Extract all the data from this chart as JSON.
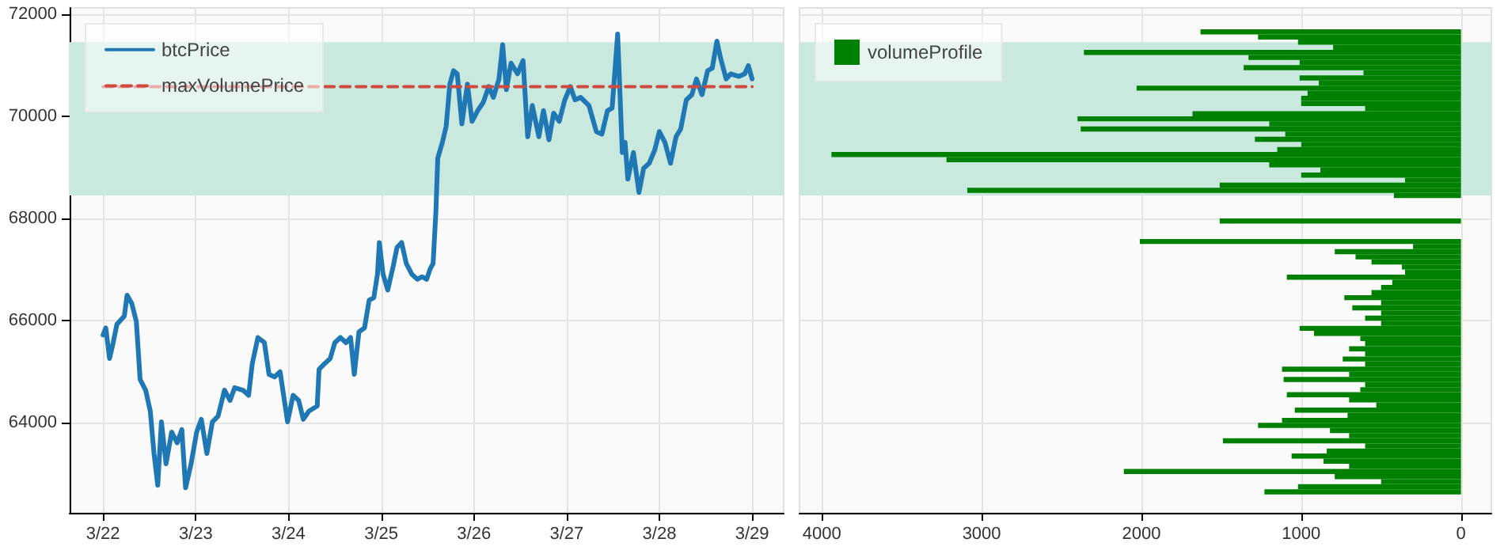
{
  "chart_data": [
    {
      "type": "line",
      "xlim": [
        "--03-21T15:22",
        "--03-29T08:10"
      ],
      "ylim": [
        62240,
        72120
      ],
      "xticks": [
        {
          "value": "--03-22",
          "label": "3/22"
        },
        {
          "value": "--03-23",
          "label": "3/23"
        },
        {
          "value": "--03-24",
          "label": "3/24"
        },
        {
          "value": "--03-25",
          "label": "3/25"
        },
        {
          "value": "--03-26",
          "label": "3/26"
        },
        {
          "value": "--03-27",
          "label": "3/27"
        },
        {
          "value": "--03-28",
          "label": "3/28"
        },
        {
          "value": "--03-29",
          "label": "3/29"
        }
      ],
      "yticks": [
        64000,
        66000,
        68000,
        70000,
        72000
      ],
      "grid": true,
      "legend": "top left",
      "bands": [
        {
          "axis": "y",
          "from": 68450,
          "to": 71450,
          "color": "#c9e8de"
        }
      ],
      "series": [
        {
          "name": "btcPrice",
          "color": "#1f77b4",
          "line_style": "solid",
          "x": [
            "--03-22T00:00",
            "--03-22T00:43",
            "--03-22T01:41",
            "--03-22T02:38",
            "--03-22T03:36",
            "--03-22T05:31",
            "--03-22T06:14",
            "--03-22T07:26",
            "--03-22T08:38",
            "--03-22T09:36",
            "--03-22T11:02",
            "--03-22T12:14",
            "--03-22T13:12",
            "--03-22T14:10",
            "--03-22T15:07",
            "--03-22T16:19",
            "--03-22T17:46",
            "--03-22T19:12",
            "--03-22T20:24",
            "--03-22T21:22",
            "--03-22T22:48",
            "--03-23T00:14",
            "--03-23T01:26",
            "--03-23T02:53",
            "--03-23T04:19",
            "--03-23T05:46",
            "--03-23T07:26",
            "--03-23T08:53",
            "--03-23T10:05",
            "--03-23T12:14",
            "--03-23T13:41",
            "--03-23T14:38",
            "--03-23T16:05",
            "--03-23T17:46",
            "--03-23T18:58",
            "--03-23T20:24",
            "--03-23T21:50",
            "--03-23T23:46",
            "--03-24T01:12",
            "--03-24T02:38",
            "--03-24T03:50",
            "--03-24T05:17",
            "--03-24T07:26",
            "--03-24T07:55",
            "--03-24T09:22",
            "--03-24T10:48",
            "--03-24T12:00",
            "--03-24T13:26",
            "--03-24T14:53",
            "--03-24T16:05",
            "--03-24T17:02",
            "--03-24T18:14",
            "--03-24T19:41",
            "--03-24T20:53",
            "--03-24T22:05",
            "--03-24T23:02",
            "--03-24T23:31",
            "--03-25T00:29",
            "--03-25T01:41",
            "--03-25T03:07",
            "--03-25T04:05",
            "--03-25T05:17",
            "--03-25T06:29",
            "--03-25T07:55",
            "--03-25T09:22",
            "--03-25T10:34",
            "--03-25T11:46",
            "--03-25T12:43",
            "--03-25T13:26",
            "--03-25T14:10",
            "--03-25T14:38",
            "--03-25T15:50",
            "--03-25T16:48",
            "--03-25T17:46",
            "--03-25T18:43",
            "--03-25T19:41",
            "--03-25T20:53",
            "--03-25T22:19",
            "--03-25T23:31",
            "--03-26T00:58",
            "--03-26T02:24",
            "--03-26T03:50",
            "--03-26T05:02",
            "--03-26T06:29",
            "--03-26T07:26",
            "--03-26T08:24",
            "--03-26T09:36",
            "--03-26T11:17",
            "--03-26T12:43",
            "--03-26T13:55",
            "--03-26T15:07",
            "--03-26T16:48",
            "--03-26T18:00",
            "--03-26T19:26",
            "--03-26T20:38",
            "--03-26T22:05",
            "--03-26T23:31",
            "--03-27T00:58",
            "--03-27T02:10",
            "--03-27T03:36",
            "--03-27T05:46",
            "--03-27T07:41",
            "--03-27T09:07",
            "--03-27T10:34",
            "--03-27T11:46",
            "--03-27T13:12",
            "--03-27T14:24",
            "--03-27T15:07",
            "--03-27T15:50",
            "--03-27T17:17",
            "--03-27T18:43",
            "--03-27T19:55",
            "--03-27T21:22",
            "--03-27T22:48",
            "--03-28T00:00",
            "--03-28T01:26",
            "--03-28T02:53",
            "--03-28T04:19",
            "--03-28T05:31",
            "--03-28T06:58",
            "--03-28T08:24",
            "--03-28T09:36",
            "--03-28T11:02",
            "--03-28T12:29",
            "--03-28T13:41",
            "--03-28T14:53",
            "--03-28T15:50",
            "--03-28T17:17",
            "--03-28T18:29",
            "--03-28T20:38",
            "--03-28T22:05",
            "--03-28T23:02",
            "--03-29T00:00"
          ],
          "values": [
            65720,
            65860,
            65260,
            65570,
            65930,
            66090,
            66500,
            66340,
            65980,
            64850,
            64640,
            64230,
            63400,
            62780,
            64020,
            63200,
            63820,
            63610,
            63870,
            62730,
            63200,
            63820,
            64070,
            63400,
            64020,
            64130,
            64640,
            64440,
            64690,
            64640,
            64540,
            65160,
            65670,
            65570,
            64950,
            64900,
            65000,
            64020,
            64540,
            64440,
            64070,
            64230,
            64330,
            65050,
            65160,
            65260,
            65570,
            65670,
            65570,
            65670,
            64950,
            65780,
            65860,
            66400,
            66450,
            66910,
            67530,
            66910,
            66600,
            67070,
            67430,
            67530,
            67120,
            66910,
            66810,
            66860,
            66810,
            67020,
            67120,
            68150,
            69180,
            69490,
            69800,
            70630,
            70890,
            70830,
            69850,
            70630,
            69900,
            70110,
            70270,
            70580,
            70370,
            70730,
            71400,
            70520,
            71040,
            70830,
            71090,
            69600,
            70210,
            69600,
            70110,
            69540,
            70060,
            69900,
            70320,
            70580,
            70320,
            70370,
            70210,
            69700,
            69650,
            70110,
            70160,
            71610,
            69290,
            69490,
            68770,
            69290,
            68510,
            68980,
            69080,
            69340,
            69700,
            69490,
            69080,
            69600,
            69750,
            70320,
            70420,
            70730,
            70420,
            70890,
            70940,
            71470,
            71140,
            70730,
            70830,
            70780,
            70830,
            70990,
            70730
          ]
        },
        {
          "name": "maxVolumePrice",
          "color": "#d0493f",
          "line_style": "dashed",
          "x": [
            "--03-22",
            "--03-29"
          ],
          "values": [
            70580,
            70580
          ]
        }
      ]
    },
    {
      "type": "histogram",
      "orientation": "horizontal",
      "xlim": [
        4140,
        -190
      ],
      "ylim": [
        62240,
        72120
      ],
      "xticks": [
        4000,
        3000,
        2000,
        1000,
        0
      ],
      "yticks": [
        64000,
        66000,
        68000,
        70000,
        72000
      ],
      "tick_labels": "x",
      "grid": true,
      "legend": "top left",
      "bands": [
        {
          "axis": "y",
          "from": 68450,
          "to": 71450,
          "color": "#c9e8de"
        }
      ],
      "bins": [
        62600,
        62700,
        62800,
        62900,
        63000,
        63100,
        63200,
        63300,
        63400,
        63500,
        63600,
        63700,
        63800,
        63900,
        64000,
        64100,
        64200,
        64300,
        64400,
        64500,
        64600,
        64700,
        64800,
        64900,
        65000,
        65100,
        65200,
        65300,
        65400,
        65500,
        65600,
        65700,
        65800,
        65900,
        66000,
        66100,
        66200,
        66300,
        66400,
        66500,
        66600,
        66700,
        66800,
        66900,
        67000,
        67100,
        67200,
        67300,
        67400,
        67500,
        67600,
        67700,
        67800,
        67900,
        68000,
        68100,
        68200,
        68300,
        68400,
        68500,
        68600,
        68700,
        68800,
        68900,
        69000,
        69100,
        69200,
        69300,
        69400,
        69500,
        69600,
        69700,
        69800,
        69900,
        70000,
        70100,
        70200,
        70300,
        70400,
        70500,
        70600,
        70700,
        70800,
        70900,
        71000,
        71100,
        71200,
        71300,
        71400,
        71500,
        71600,
        71700
      ],
      "series": [
        {
          "name": "volumeProfile",
          "color": "#008000",
          "values": [
            1230,
            1020,
            500,
            790,
            2110,
            700,
            860,
            1060,
            840,
            600,
            1490,
            700,
            820,
            1270,
            1120,
            710,
            1040,
            530,
            700,
            1090,
            630,
            600,
            1110,
            700,
            1120,
            600,
            740,
            600,
            700,
            600,
            630,
            920,
            1010,
            500,
            600,
            500,
            680,
            500,
            730,
            560,
            500,
            430,
            1090,
            350,
            370,
            560,
            660,
            790,
            300,
            2010,
            0,
            0,
            0,
            1510,
            0,
            0,
            0,
            0,
            420,
            3090,
            1510,
            350,
            1000,
            880,
            1200,
            3220,
            3940,
            1150,
            1000,
            1290,
            1100,
            2380,
            1200,
            2400,
            1680,
            600,
            1000,
            1000,
            960,
            2030,
            890,
            1010,
            610,
            1360,
            1010,
            1330,
            2360,
            800,
            1020,
            1270,
            1630
          ]
        }
      ]
    }
  ]
}
